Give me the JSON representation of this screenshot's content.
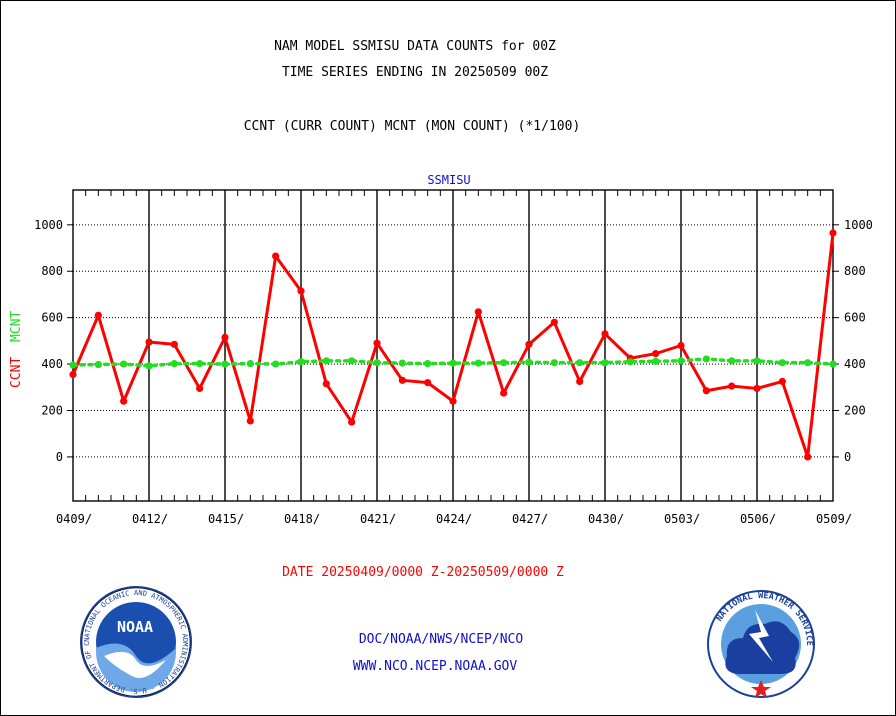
{
  "header": {
    "line1": "NAM MODEL SSMISU DATA COUNTS for 00Z",
    "line2": "TIME SERIES ENDING IN 20250509 00Z",
    "line3": "CCNT (CURR COUNT) MCNT (MON COUNT) (*1/100)"
  },
  "footer": {
    "date_range": "DATE 20250409/0000 Z-20250509/0000 Z",
    "org": "DOC/NOAA/NWS/NCEP/NCO",
    "url": "WWW.NCO.NCEP.NOAA.GOV"
  },
  "logos": {
    "left": {
      "name": "noaa-logo",
      "text": "NOAA",
      "ring_text": "NATIONAL OCEANIC AND ATMOSPHERIC ADMINISTRATION · U.S. DEPARTMENT OF COMMERCE"
    },
    "right": {
      "name": "nws-logo",
      "ring_text": "NATIONAL WEATHER SERVICE"
    }
  },
  "colors": {
    "ccnt": "#ff0000",
    "mcnt": "#22dd22",
    "header_text": "#000000",
    "date_text": "#ff0000",
    "footer_text": "#1010cc",
    "panel_title": "#1010cc"
  },
  "chart_data": {
    "type": "line",
    "title": "SSMISU",
    "ylabel_left": [
      {
        "text": "CCNT",
        "color": "#ff0000"
      },
      {
        "text": "MCNT",
        "color": "#22dd22"
      }
    ],
    "x_tick_labels": [
      "0409/",
      "0412/",
      "0415/",
      "0418/",
      "0421/",
      "0424/",
      "0427/",
      "0430/",
      "0503/",
      "0506/",
      "0509/"
    ],
    "y_ticks": [
      0,
      200,
      400,
      600,
      800,
      1000
    ],
    "ylim": [
      -190,
      1150
    ],
    "xlim": [
      0,
      60
    ],
    "grid": true,
    "series": [
      {
        "name": "CCNT",
        "style": "solid",
        "values": [
          355,
          610,
          240,
          495,
          485,
          295,
          515,
          155,
          865,
          715,
          315,
          150,
          490,
          330,
          320,
          240,
          625,
          275,
          485,
          580,
          325,
          530,
          425,
          445,
          480,
          285,
          305,
          295,
          325,
          0,
          965
        ]
      },
      {
        "name": "MCNT",
        "style": "dotted",
        "values": [
          396,
          398,
          400,
          392,
          402,
          402,
          400,
          402,
          400,
          410,
          414,
          414,
          406,
          404,
          402,
          404,
          404,
          406,
          408,
          406,
          406,
          406,
          410,
          412,
          414,
          422,
          414,
          414,
          406,
          406,
          400
        ]
      }
    ]
  }
}
